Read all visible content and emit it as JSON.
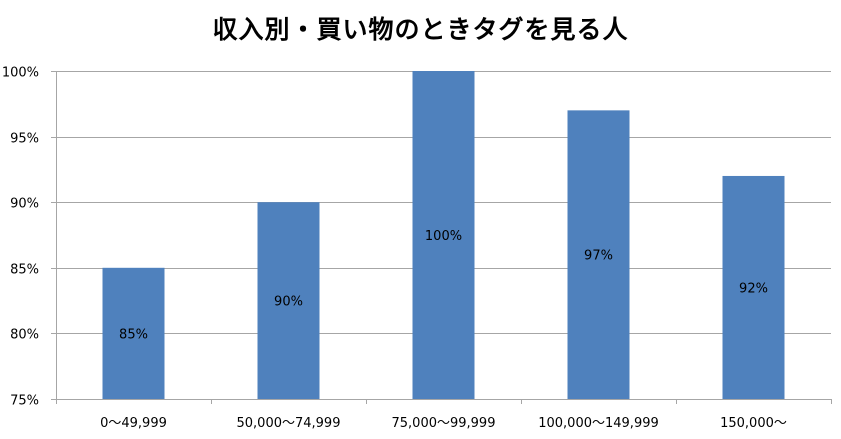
{
  "chart_data": {
    "type": "bar",
    "title": "収入別・買い物のときタグを見る人",
    "xlabel": "",
    "ylabel": "",
    "categories": [
      "0〜49,999",
      "50,000〜74,999",
      "75,000〜99,999",
      "100,000〜149,999",
      "150,000〜"
    ],
    "values": [
      85,
      90,
      100,
      97,
      92
    ],
    "data_labels": [
      "85%",
      "90%",
      "100%",
      "97%",
      "92%"
    ],
    "ylim": [
      75,
      100
    ],
    "yticks": [
      75,
      80,
      85,
      90,
      95,
      100
    ],
    "ytick_labels": [
      "75%",
      "80%",
      "85%",
      "90%",
      "95%",
      "100%"
    ],
    "grid": true,
    "legend": "none",
    "bar_color": "#4f81bd",
    "grid_color": "#a6a6a6"
  }
}
